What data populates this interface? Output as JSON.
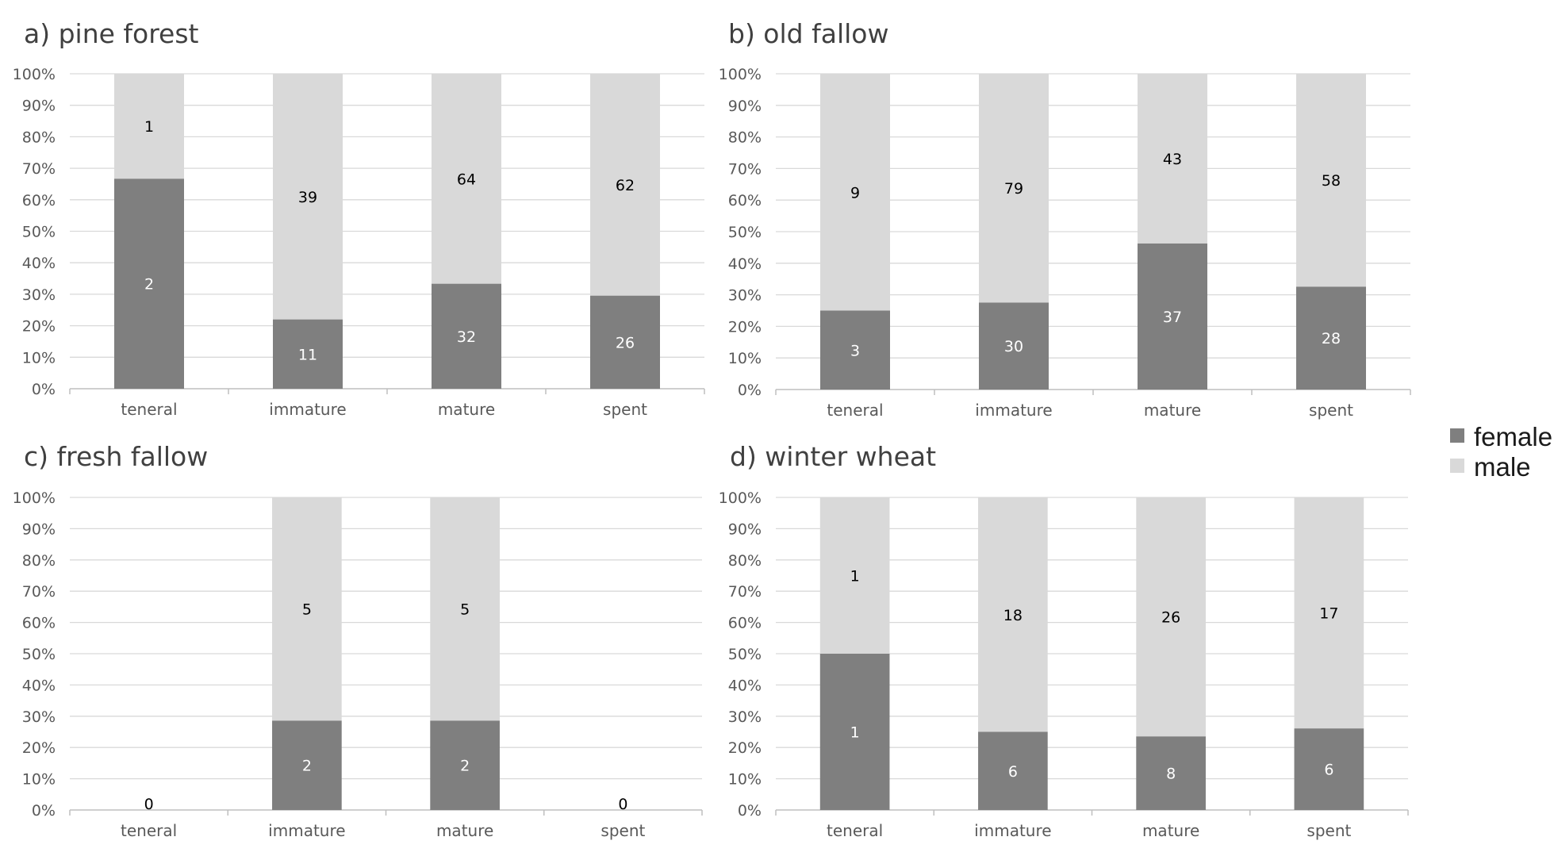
{
  "colors": {
    "female": "#7f7f7f",
    "male": "#d9d9d9",
    "grid": "#d9d9d9",
    "axis": "#bfbfbf"
  },
  "chart_data": [
    {
      "type": "bar",
      "stacked": "percent",
      "title": "a) pine forest",
      "categories": [
        "teneral",
        "immature",
        "mature",
        "spent"
      ],
      "yticks": [
        "0%",
        "10%",
        "20%",
        "30%",
        "40%",
        "50%",
        "60%",
        "70%",
        "80%",
        "90%",
        "100%"
      ],
      "ylim": [
        0,
        100
      ],
      "series": [
        {
          "name": "female",
          "values": [
            2,
            11,
            32,
            26
          ]
        },
        {
          "name": "male",
          "values": [
            1,
            39,
            64,
            62
          ]
        }
      ]
    },
    {
      "type": "bar",
      "stacked": "percent",
      "title": "b) old fallow",
      "categories": [
        "teneral",
        "immature",
        "mature",
        "spent"
      ],
      "yticks": [
        "0%",
        "10%",
        "20%",
        "30%",
        "40%",
        "50%",
        "60%",
        "70%",
        "80%",
        "90%",
        "100%"
      ],
      "ylim": [
        0,
        100
      ],
      "series": [
        {
          "name": "female",
          "values": [
            3,
            30,
            37,
            28
          ]
        },
        {
          "name": "male",
          "values": [
            9,
            79,
            43,
            58
          ]
        }
      ]
    },
    {
      "type": "bar",
      "stacked": "percent",
      "title": "c) fresh fallow",
      "categories": [
        "teneral",
        "immature",
        "mature",
        "spent"
      ],
      "yticks": [
        "0%",
        "10%",
        "20%",
        "30%",
        "40%",
        "50%",
        "60%",
        "70%",
        "80%",
        "90%",
        "100%"
      ],
      "ylim": [
        0,
        100
      ],
      "series": [
        {
          "name": "female",
          "values": [
            0,
            2,
            2,
            0
          ]
        },
        {
          "name": "male",
          "values": [
            0,
            5,
            5,
            0
          ]
        }
      ]
    },
    {
      "type": "bar",
      "stacked": "percent",
      "title": "d) winter wheat",
      "categories": [
        "teneral",
        "immature",
        "mature",
        "spent"
      ],
      "yticks": [
        "0%",
        "10%",
        "20%",
        "30%",
        "40%",
        "50%",
        "60%",
        "70%",
        "80%",
        "90%",
        "100%"
      ],
      "ylim": [
        0,
        100
      ],
      "series": [
        {
          "name": "female",
          "values": [
            1,
            6,
            8,
            6
          ]
        },
        {
          "name": "male",
          "values": [
            1,
            18,
            26,
            17
          ]
        }
      ]
    }
  ],
  "legend": {
    "placement": "right",
    "items": [
      {
        "label": "female",
        "color": "#7f7f7f"
      },
      {
        "label": "male",
        "color": "#d9d9d9"
      }
    ]
  }
}
